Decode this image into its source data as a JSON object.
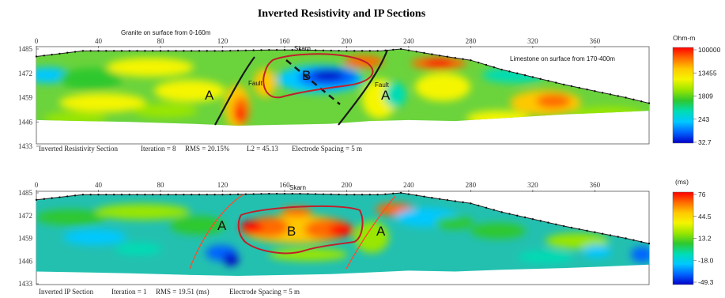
{
  "title": "Inverted Resistivity and IP Sections",
  "chart_data": [
    {
      "type": "heatmap",
      "name": "Inverted Resistivity Section",
      "x_ticks": [
        0,
        40,
        80,
        120,
        160,
        200,
        240,
        280,
        320,
        360
      ],
      "y_ticks": [
        1485,
        1472,
        1459,
        1446,
        1433
      ],
      "xlim": [
        0,
        395
      ],
      "ylim": [
        1433,
        1485
      ],
      "topography": [
        [
          0,
          1481
        ],
        [
          30,
          1484
        ],
        [
          80,
          1484
        ],
        [
          120,
          1484
        ],
        [
          150,
          1484.5
        ],
        [
          170,
          1484.5
        ],
        [
          200,
          1484
        ],
        [
          222,
          1484
        ],
        [
          235,
          1485
        ],
        [
          260,
          1481.5
        ],
        [
          280,
          1479
        ],
        [
          300,
          1474
        ],
        [
          340,
          1466
        ],
        [
          380,
          1459
        ],
        [
          395,
          1456
        ]
      ],
      "bottom": [
        [
          0,
          1447
        ],
        [
          60,
          1446
        ],
        [
          100,
          1445
        ],
        [
          130,
          1444
        ],
        [
          160,
          1444.5
        ],
        [
          190,
          1445
        ],
        [
          215,
          1446.5
        ],
        [
          240,
          1447
        ],
        [
          270,
          1446.5
        ],
        [
          300,
          1448
        ],
        [
          340,
          1450
        ],
        [
          370,
          1451
        ],
        [
          395,
          1452
        ]
      ],
      "caption": {
        "label": "Inverted Resistivity Section",
        "iteration": "Iteration = 8",
        "rms": "RMS = 20.15%",
        "l2": "L2 = 45.13",
        "spacing": "Electrode Spacing = 5 m"
      },
      "annotations": {
        "granite": "Granite on surface from 0-160m",
        "limestone": "Limestone on surface from 170-400m",
        "skarn": "Skarn",
        "fault1": "Fault",
        "fault2": "Fault",
        "a1": "A",
        "a2": "A",
        "b": "B"
      },
      "colorbar": {
        "unit": "Ohm-m",
        "labels": [
          "100000",
          "13455",
          "1809",
          "243",
          "32.7"
        ]
      }
    },
    {
      "type": "heatmap",
      "name": "Inverted IP Section",
      "x_ticks": [
        0,
        40,
        80,
        120,
        160,
        200,
        240,
        280,
        320,
        360
      ],
      "y_ticks": [
        1485,
        1472,
        1459,
        1446,
        1433
      ],
      "xlim": [
        0,
        395
      ],
      "ylim": [
        1433,
        1485
      ],
      "topography": [
        [
          0,
          1481
        ],
        [
          30,
          1484
        ],
        [
          80,
          1484
        ],
        [
          120,
          1484
        ],
        [
          150,
          1484.5
        ],
        [
          170,
          1484.5
        ],
        [
          200,
          1484
        ],
        [
          222,
          1484
        ],
        [
          235,
          1485
        ],
        [
          260,
          1481.5
        ],
        [
          280,
          1479
        ],
        [
          300,
          1474
        ],
        [
          340,
          1466
        ],
        [
          380,
          1459
        ],
        [
          395,
          1456
        ]
      ],
      "bottom": [
        [
          0,
          1440
        ],
        [
          60,
          1439
        ],
        [
          100,
          1438
        ],
        [
          130,
          1437.5
        ],
        [
          160,
          1438
        ],
        [
          190,
          1438.5
        ],
        [
          215,
          1439.5
        ],
        [
          240,
          1440.5
        ],
        [
          270,
          1440
        ],
        [
          300,
          1441
        ],
        [
          340,
          1442
        ],
        [
          370,
          1443
        ],
        [
          395,
          1444
        ]
      ],
      "caption": {
        "label": "Inverted IP Section",
        "iteration": "Iteration = 1",
        "rms": "RMS = 19.51 (ms)",
        "spacing": "Electrode Spacing = 5 m"
      },
      "annotations": {
        "skarn": "Skarn",
        "a1": "A",
        "a2": "A",
        "b": "B"
      },
      "colorbar": {
        "unit": "(ms)",
        "labels": [
          "76",
          "44.5",
          "13.2",
          "-18.0",
          "-49.3"
        ]
      }
    }
  ],
  "colors": {
    "scale": [
      "#ff0000",
      "#ff6a00",
      "#ffc800",
      "#f5f500",
      "#9ae600",
      "#2ec82e",
      "#00dcb4",
      "#00c8ff",
      "#0064ff",
      "#0000c8"
    ],
    "fill_resistivity": "#6bd33c",
    "fill_ip": "#23c0b0",
    "interpretation_resistivity": "#c0202a",
    "interpretation_ip": "#c0202a",
    "fault_line": "#1a1a1a",
    "ip_boundary": "#ff4a2a"
  }
}
